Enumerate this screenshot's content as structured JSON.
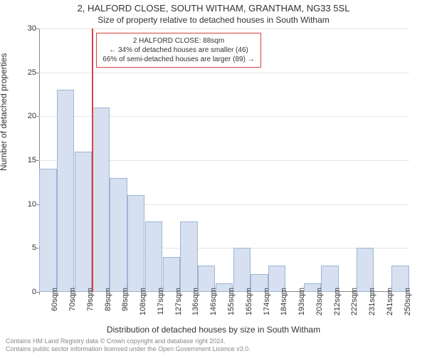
{
  "titles": {
    "main": "2, HALFORD CLOSE, SOUTH WITHAM, GRANTHAM, NG33 5SL",
    "sub": "Size of property relative to detached houses in South Witham"
  },
  "axes": {
    "y_label": "Number of detached properties",
    "x_label": "Distribution of detached houses by size in South Witham",
    "y_min": 0,
    "y_max": 30,
    "y_tick_step": 5
  },
  "chart": {
    "type": "histogram",
    "bar_fill": "#d6e0f0",
    "bar_border": "#9fb3d6",
    "grid_color": "#e5e5e5",
    "background": "#ffffff",
    "categories": [
      "60sqm",
      "70sqm",
      "79sqm",
      "89sqm",
      "98sqm",
      "108sqm",
      "117sqm",
      "127sqm",
      "136sqm",
      "146sqm",
      "155sqm",
      "165sqm",
      "174sqm",
      "184sqm",
      "193sqm",
      "203sqm",
      "212sqm",
      "222sqm",
      "231sqm",
      "241sqm",
      "250sqm"
    ],
    "values": [
      14,
      23,
      16,
      21,
      13,
      11,
      8,
      4,
      8,
      3,
      1,
      5,
      2,
      3,
      0,
      1,
      3,
      0,
      5,
      0,
      3
    ]
  },
  "marker": {
    "position_category_index": 3,
    "line_color": "#d94040",
    "callout_lines": [
      "2 HALFORD CLOSE: 88sqm",
      "← 34% of detached houses are smaller (46)",
      "66% of semi-detached houses are larger (89) →"
    ]
  },
  "footnote": {
    "line1": "Contains HM Land Registry data © Crown copyright and database right 2024.",
    "line2": "Contains public sector information licensed under the Open Government Licence v3.0."
  }
}
